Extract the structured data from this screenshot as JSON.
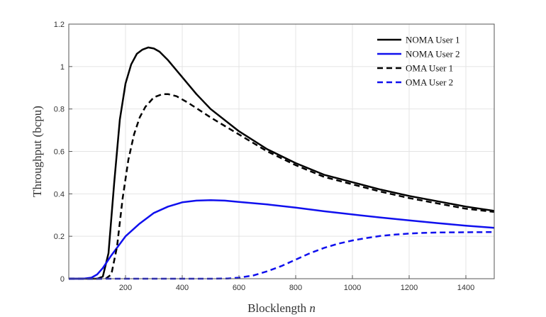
{
  "chart_data": {
    "type": "line",
    "title": "",
    "xlabel": "Blocklength",
    "xlabel_var": "n",
    "ylabel": "Throughput (bcpu)",
    "xlim": [
      0,
      1500
    ],
    "ylim": [
      0,
      1.2
    ],
    "xticks": [
      200,
      400,
      600,
      800,
      1000,
      1200,
      1400
    ],
    "yticks": [
      0,
      0.2,
      0.4,
      0.6,
      0.8,
      1,
      1.2
    ],
    "ytick_labels": [
      "0",
      "0.2",
      "0.4",
      "0.6",
      "0.8",
      "1",
      "1.2"
    ],
    "grid": true,
    "legend_position": "top-right",
    "series": [
      {
        "name": "NOMA User 1",
        "color": "#000000",
        "style": "solid",
        "x": [
          0,
          100,
          120,
          140,
          160,
          180,
          200,
          220,
          240,
          260,
          280,
          300,
          320,
          350,
          400,
          450,
          500,
          600,
          700,
          800,
          900,
          1000,
          1100,
          1200,
          1300,
          1400,
          1500
        ],
        "y": [
          0,
          0,
          0.01,
          0.12,
          0.45,
          0.75,
          0.92,
          1.01,
          1.06,
          1.08,
          1.09,
          1.085,
          1.07,
          1.03,
          0.95,
          0.87,
          0.8,
          0.695,
          0.61,
          0.545,
          0.49,
          0.455,
          0.42,
          0.39,
          0.365,
          0.34,
          0.32
        ]
      },
      {
        "name": "NOMA User 2",
        "color": "#1010ee",
        "style": "solid",
        "x": [
          0,
          50,
          80,
          100,
          120,
          150,
          200,
          250,
          300,
          350,
          400,
          450,
          500,
          550,
          600,
          700,
          800,
          900,
          1000,
          1100,
          1200,
          1300,
          1400,
          1500
        ],
        "y": [
          0,
          0,
          0.005,
          0.02,
          0.05,
          0.11,
          0.2,
          0.26,
          0.31,
          0.34,
          0.36,
          0.368,
          0.37,
          0.368,
          0.362,
          0.35,
          0.335,
          0.318,
          0.303,
          0.288,
          0.275,
          0.262,
          0.25,
          0.24
        ]
      },
      {
        "name": "OMA User 1",
        "color": "#000000",
        "style": "dashed",
        "x": [
          0,
          130,
          150,
          170,
          190,
          210,
          230,
          250,
          270,
          300,
          330,
          350,
          380,
          420,
          500,
          600,
          700,
          800,
          900,
          1000,
          1100,
          1200,
          1300,
          1400,
          1500
        ],
        "y": [
          0,
          0,
          0.02,
          0.15,
          0.38,
          0.56,
          0.68,
          0.76,
          0.81,
          0.855,
          0.87,
          0.87,
          0.86,
          0.83,
          0.76,
          0.68,
          0.6,
          0.535,
          0.48,
          0.445,
          0.41,
          0.38,
          0.355,
          0.33,
          0.315
        ]
      },
      {
        "name": "OMA User 2",
        "color": "#1010ee",
        "style": "dashed",
        "x": [
          0,
          100,
          200,
          300,
          400,
          500,
          560,
          600,
          650,
          700,
          750,
          800,
          850,
          900,
          950,
          1000,
          1050,
          1100,
          1150,
          1200,
          1250,
          1300,
          1400,
          1500
        ],
        "y": [
          0,
          0,
          0,
          0,
          0,
          0,
          0.001,
          0.005,
          0.015,
          0.035,
          0.06,
          0.09,
          0.12,
          0.145,
          0.165,
          0.18,
          0.192,
          0.202,
          0.208,
          0.213,
          0.216,
          0.218,
          0.219,
          0.22
        ]
      }
    ]
  }
}
